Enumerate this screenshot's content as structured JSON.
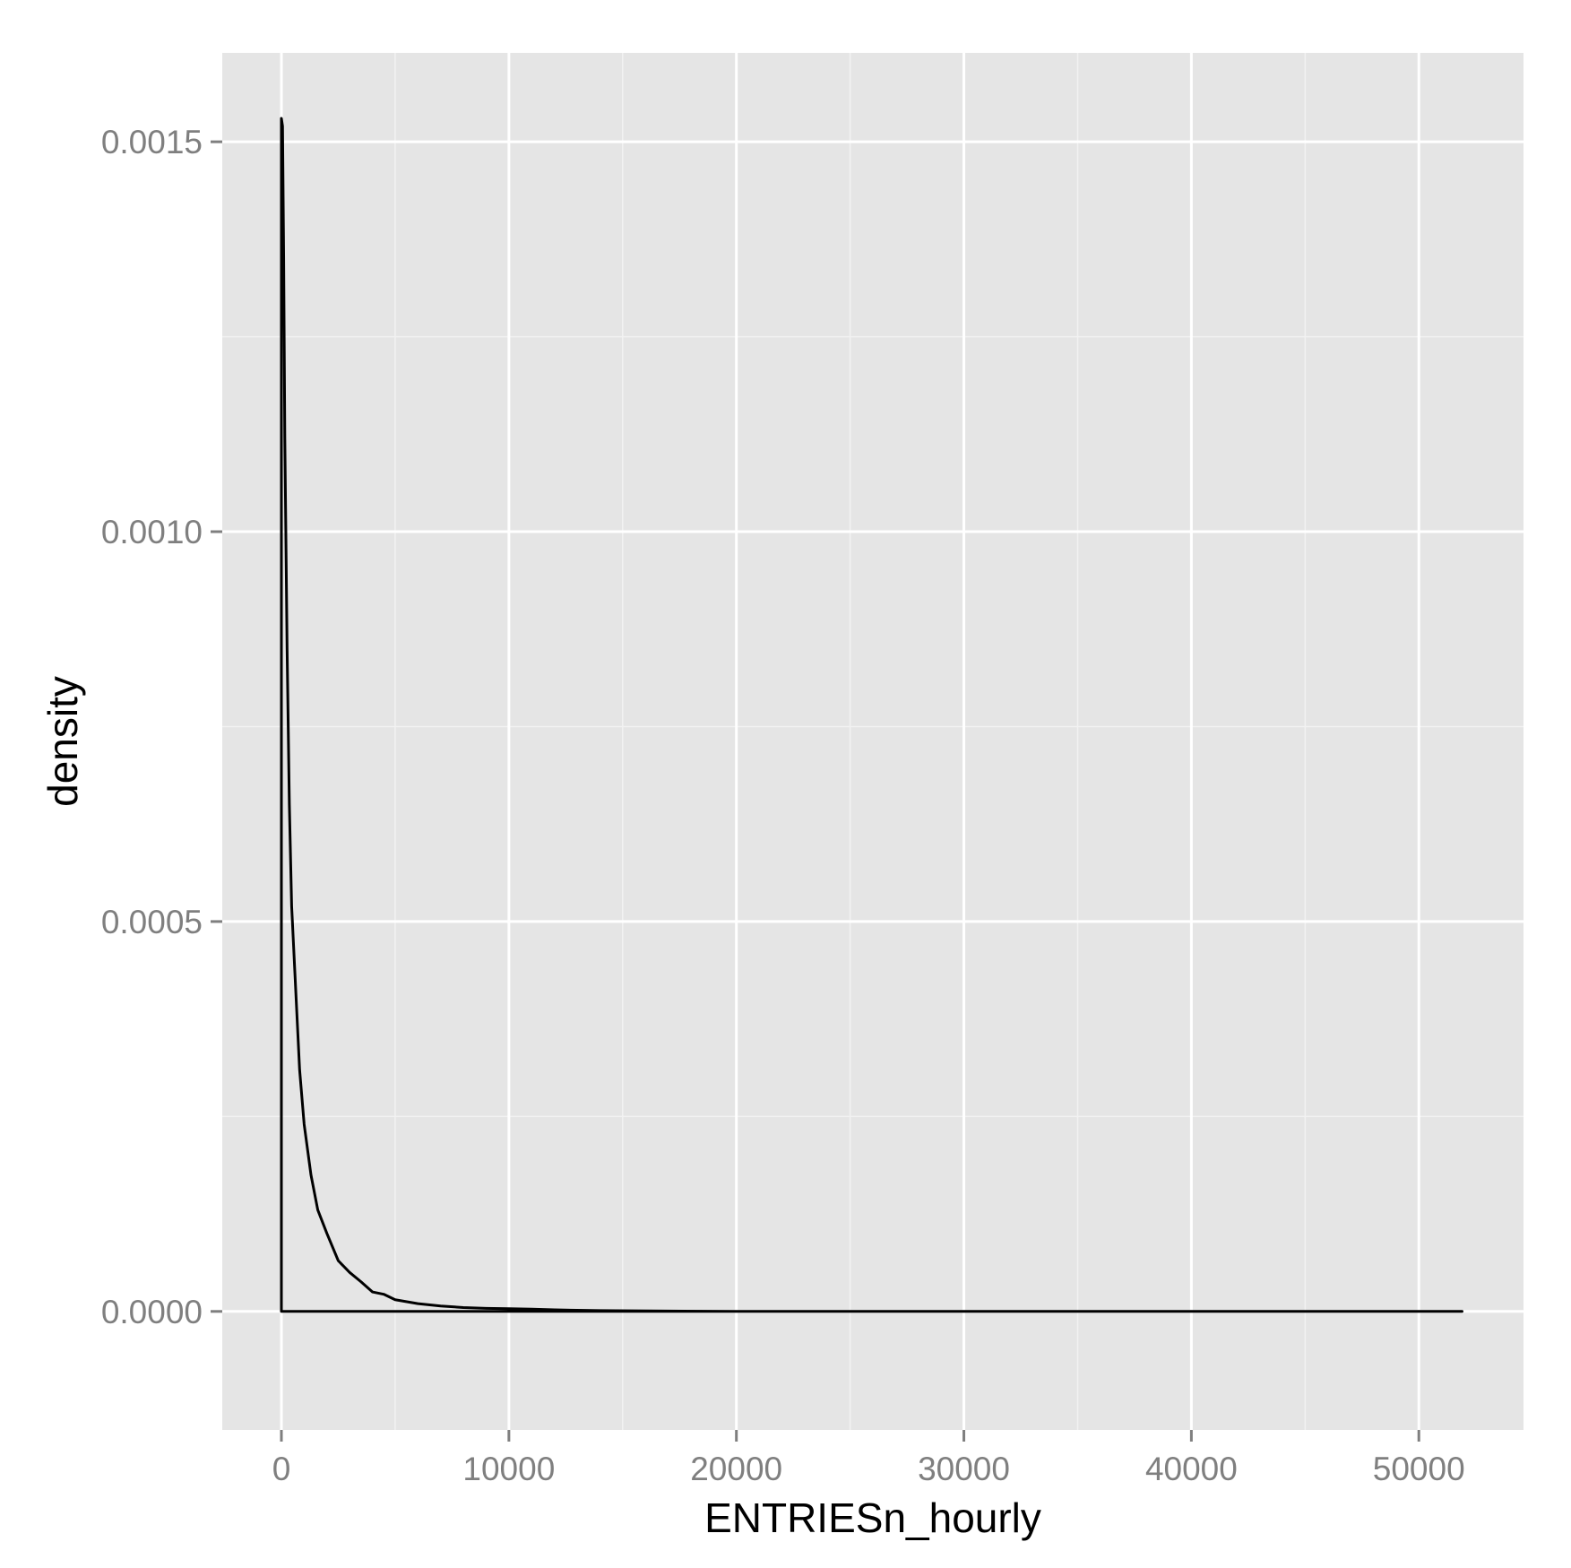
{
  "chart_data": {
    "type": "line",
    "title": "",
    "xlabel": "ENTRIESn_hourly",
    "ylabel": "density",
    "xlim": [
      -2600,
      54600
    ],
    "ylim": [
      -0.000152,
      0.001614
    ],
    "x_ticks": [
      0,
      10000,
      20000,
      30000,
      40000,
      50000
    ],
    "x_tick_labels": [
      "0",
      "10000",
      "20000",
      "30000",
      "40000",
      "50000"
    ],
    "x_minor_ticks": [
      5000,
      15000,
      25000,
      35000,
      45000
    ],
    "y_ticks": [
      0,
      0.0005,
      0.001,
      0.0015
    ],
    "y_tick_labels": [
      "0.0000",
      "0.0005",
      "0.0010",
      "0.0015"
    ],
    "y_minor_ticks": [
      0.00025,
      0.00075,
      0.00125
    ],
    "grid": true,
    "legend": "none",
    "colors": {
      "panel_background": "#e5e5e5",
      "grid_major": "#ffffff",
      "grid_minor": "#f2f2f2",
      "line": "#000000",
      "tick_label": "#7f7f7f",
      "tick_mark": "#7f7f7f"
    },
    "series": [
      {
        "x": [
          0,
          0,
          50,
          100,
          150,
          250,
          350,
          450,
          600,
          800,
          1000,
          1300,
          1600,
          2000,
          2500,
          3000,
          3500,
          4000,
          4500,
          5000,
          6000,
          7000,
          8000,
          9000,
          10000,
          11000,
          12000,
          14000,
          20000,
          30000,
          40000,
          51900,
          0
        ],
        "y": [
          0,
          0.00153,
          0.00152,
          0.00135,
          0.00112,
          0.00085,
          0.00065,
          0.00052,
          0.00043,
          0.00031,
          0.00024,
          0.000175,
          0.00013,
          0.0001,
          6.5e-05,
          5e-05,
          3.8e-05,
          2.5e-05,
          2.2e-05,
          1.5e-05,
          1e-05,
          7e-06,
          5e-06,
          4e-06,
          3.5e-06,
          3e-06,
          2e-06,
          1e-06,
          0,
          0,
          0,
          0,
          0
        ]
      }
    ]
  }
}
